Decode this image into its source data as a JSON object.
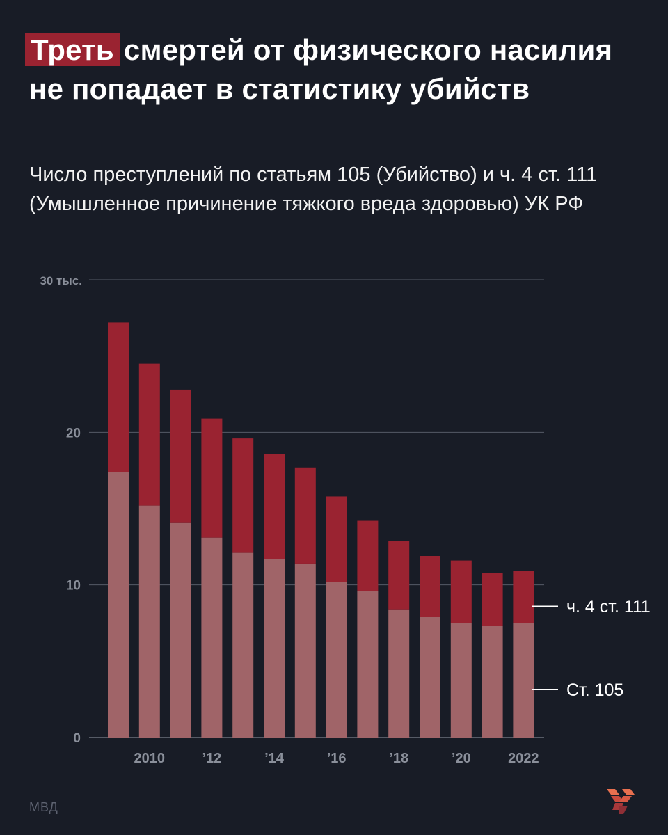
{
  "title": {
    "highlight": "Треть",
    "rest": "смертей от физического насилия не попадает в статистику убийств"
  },
  "subtitle": "Число преступлений по статьям 105 (Убийство) и ч. 4 ст. 111 (Умышленное причинение тяжкого вреда здоровью) УК РФ",
  "source": "МВД",
  "colors": {
    "background": "#181c26",
    "series_105": "#a06468",
    "series_111": "#9a2331",
    "highlight": "#9a2331",
    "grid": "#555a66",
    "tick": "#8a8f9a"
  },
  "chart_data": {
    "type": "bar",
    "stacked": true,
    "categories": [
      "2009",
      "2010",
      "2011",
      "2012",
      "2013",
      "2014",
      "2015",
      "2016",
      "2017",
      "2018",
      "2019",
      "2020",
      "2021",
      "2022"
    ],
    "x_tick_labels": [
      {
        "category": "2010",
        "label": "2010"
      },
      {
        "category": "2012",
        "label": "’12"
      },
      {
        "category": "2014",
        "label": "’14"
      },
      {
        "category": "2016",
        "label": "’16"
      },
      {
        "category": "2018",
        "label": "’18"
      },
      {
        "category": "2020",
        "label": "’20"
      },
      {
        "category": "2022",
        "label": "2022"
      }
    ],
    "y_ticks": [
      {
        "value": 0,
        "label": "0"
      },
      {
        "value": 10,
        "label": "10"
      },
      {
        "value": 20,
        "label": "20"
      },
      {
        "value": 30,
        "label": "30 тыс."
      }
    ],
    "ylim": [
      0,
      30
    ],
    "grid": true,
    "series": [
      {
        "name": "Ст. 105",
        "values": [
          17.4,
          15.2,
          14.1,
          13.1,
          12.1,
          11.7,
          11.4,
          10.2,
          9.6,
          8.4,
          7.9,
          7.5,
          7.3,
          7.5
        ]
      },
      {
        "name": "ч. 4 ст. 111",
        "values": [
          9.8,
          9.3,
          8.7,
          7.8,
          7.5,
          6.9,
          6.3,
          5.6,
          4.6,
          4.5,
          4.0,
          4.1,
          3.5,
          3.4
        ]
      }
    ],
    "legend": "right, direct labels"
  }
}
